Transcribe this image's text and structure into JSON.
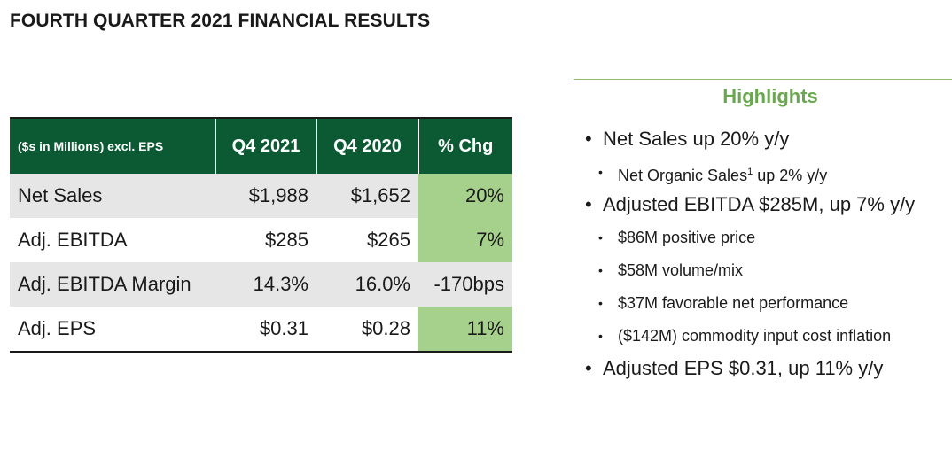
{
  "title": "FOURTH QUARTER 2021 FINANCIAL RESULTS",
  "table": {
    "headers": [
      "($s in Millions) excl. EPS",
      "Q4 2021",
      "Q4 2020",
      "% Chg"
    ],
    "rows": [
      {
        "label": "Net Sales",
        "q4_2021": "$1,988",
        "q4_2020": "$1,652",
        "chg": "20%"
      },
      {
        "label": "Adj. EBITDA",
        "q4_2021": "$285",
        "q4_2020": "$265",
        "chg": "7%"
      },
      {
        "label": "Adj. EBITDA Margin",
        "q4_2021": "14.3%",
        "q4_2020": "16.0%",
        "chg": "-170bps"
      },
      {
        "label": "Adj. EPS",
        "q4_2021": "$0.31",
        "q4_2020": "$0.28",
        "chg": "11%"
      }
    ],
    "colors": {
      "header": "#0c5a33",
      "positive": "#a6d18c",
      "shade": "#e6e6e6"
    }
  },
  "highlights": {
    "title": "Highlights",
    "color": "#6aa84f",
    "items": [
      "Net Sales up 20% y/y",
      "Net Organic Sales",
      "1",
      " up 2% y/y",
      "Adjusted EBITDA $285M, up 7% y/y",
      "$86M positive price",
      "$58M volume/mix",
      "$37M favorable net performance",
      "($142M) commodity input cost inflation",
      "Adjusted EPS $0.31, up 11% y/y"
    ]
  }
}
